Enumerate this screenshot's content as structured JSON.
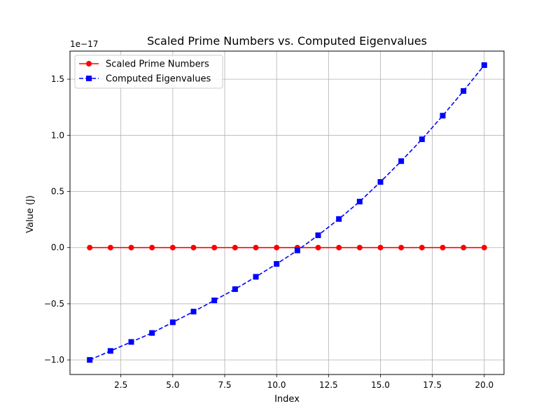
{
  "chart_data": {
    "type": "line",
    "title": "Scaled Prime Numbers vs. Computed Eigenvalues",
    "xlabel": "Index",
    "ylabel": "Value (J)",
    "y_offset_label": "1e−17",
    "y_scale": 1e-17,
    "xlim": [
      0.05,
      20.95
    ],
    "ylim": [
      -1.13,
      1.75
    ],
    "grid": true,
    "legend_position": "upper-left",
    "xticks": [
      2.5,
      5.0,
      7.5,
      10.0,
      12.5,
      15.0,
      17.5,
      20.0
    ],
    "xtick_labels": [
      "2.5",
      "5.0",
      "7.5",
      "10.0",
      "12.5",
      "15.0",
      "17.5",
      "20.0"
    ],
    "yticks": [
      -1.0,
      -0.5,
      0.0,
      0.5,
      1.0,
      1.5
    ],
    "ytick_labels": [
      "−1.0",
      "−0.5",
      "0.0",
      "0.5",
      "1.0",
      "1.5"
    ],
    "x": [
      1,
      2,
      3,
      4,
      5,
      6,
      7,
      8,
      9,
      10,
      11,
      12,
      13,
      14,
      15,
      16,
      17,
      18,
      19,
      20
    ],
    "series": [
      {
        "name": "Scaled Prime Numbers",
        "color": "#ff0000",
        "line_style": "solid",
        "marker": "circle",
        "values": [
          0,
          0,
          0,
          0,
          0,
          0,
          0,
          0,
          0,
          0,
          0,
          0,
          0,
          0,
          0,
          0,
          0,
          0,
          0,
          0
        ]
      },
      {
        "name": "Computed Eigenvalues",
        "color": "#0000ff",
        "line_style": "dashed",
        "marker": "square",
        "values": [
          -1.0,
          -0.92,
          -0.84,
          -0.76,
          -0.665,
          -0.57,
          -0.47,
          -0.37,
          -0.26,
          -0.145,
          -0.025,
          0.11,
          0.255,
          0.41,
          0.585,
          0.77,
          0.965,
          1.175,
          1.395,
          1.625
        ]
      }
    ]
  }
}
